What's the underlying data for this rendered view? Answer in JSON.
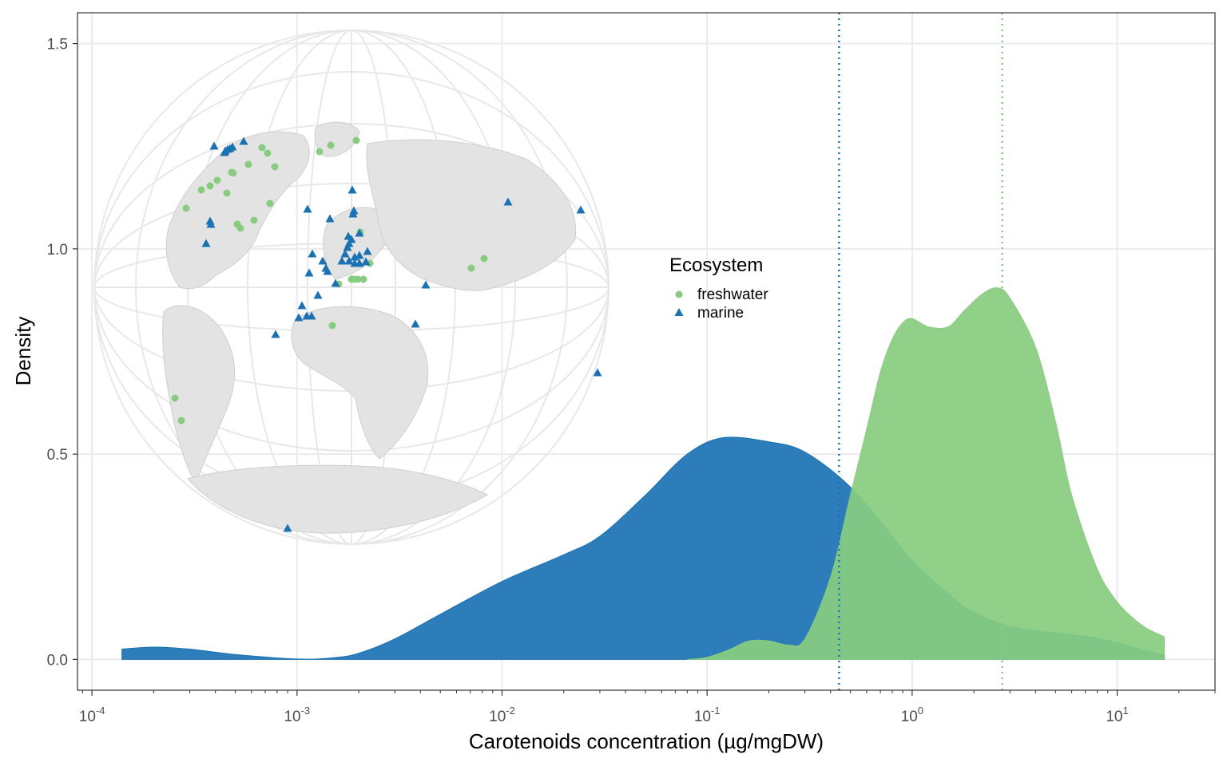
{
  "chart_data": {
    "type": "area",
    "xlabel": "Carotenoids concentration (µg/mgDW)",
    "ylabel": "Density",
    "x_scale": "log10",
    "xlim": [
      8.5e-05,
      30
    ],
    "ylim": [
      -0.075,
      1.575
    ],
    "grid": true,
    "x_ticks": [
      {
        "value": 0.0001,
        "base": "10",
        "exp": "-4"
      },
      {
        "value": 0.001,
        "base": "10",
        "exp": "-3"
      },
      {
        "value": 0.01,
        "base": "10",
        "exp": "-2"
      },
      {
        "value": 0.1,
        "base": "10",
        "exp": "-1"
      },
      {
        "value": 1,
        "base": "10",
        "exp": "0"
      },
      {
        "value": 10,
        "base": "10",
        "exp": "1"
      }
    ],
    "y_ticks": [
      {
        "value": 0.0,
        "label": "0.0"
      },
      {
        "value": 0.5,
        "label": "0.5"
      },
      {
        "value": 1.0,
        "label": "1.0"
      },
      {
        "value": 1.5,
        "label": "1.5"
      }
    ],
    "legend": {
      "title": "Ecosystem",
      "placement": "center",
      "entries": [
        {
          "label": "freshwater",
          "shape": "circle",
          "color": "#88CC7F"
        },
        {
          "label": "marine",
          "shape": "triangle",
          "color": "#1A72B3"
        }
      ]
    },
    "series": [
      {
        "name": "marine",
        "color": "#1A72B3",
        "opacity": 0.92,
        "median_line": 0.44,
        "x": [
          0.00014,
          0.0002,
          0.0003,
          0.0005,
          0.001,
          0.0015,
          0.002,
          0.003,
          0.005,
          0.01,
          0.02,
          0.03,
          0.05,
          0.08,
          0.12,
          0.2,
          0.3,
          0.5,
          0.8,
          1.0,
          1.5,
          2.0,
          3.0,
          5.0,
          8.0,
          12.0,
          17.0
        ],
        "y": [
          0.025,
          0.03,
          0.025,
          0.012,
          0.001,
          0.004,
          0.015,
          0.05,
          0.11,
          0.19,
          0.255,
          0.3,
          0.4,
          0.5,
          0.54,
          0.53,
          0.505,
          0.42,
          0.3,
          0.24,
          0.16,
          0.115,
          0.08,
          0.065,
          0.052,
          0.03,
          0.01
        ]
      },
      {
        "name": "freshwater",
        "color": "#88CC7F",
        "opacity": 0.92,
        "median_line": 2.75,
        "x": [
          0.08,
          0.1,
          0.13,
          0.16,
          0.2,
          0.25,
          0.3,
          0.4,
          0.5,
          0.6,
          0.7,
          0.8,
          0.9,
          1.0,
          1.2,
          1.5,
          1.8,
          2.2,
          2.6,
          3.0,
          4.0,
          5.0,
          6.0,
          8.0,
          10.0,
          12.0,
          14.0,
          17.0
        ],
        "y": [
          0.0,
          0.005,
          0.025,
          0.045,
          0.045,
          0.035,
          0.05,
          0.2,
          0.4,
          0.56,
          0.7,
          0.78,
          0.82,
          0.83,
          0.81,
          0.81,
          0.85,
          0.89,
          0.905,
          0.88,
          0.76,
          0.58,
          0.4,
          0.22,
          0.14,
          0.1,
          0.075,
          0.055
        ]
      }
    ],
    "map_inset": {
      "freshwater_sites": 30,
      "marine_sites": 47
    }
  }
}
